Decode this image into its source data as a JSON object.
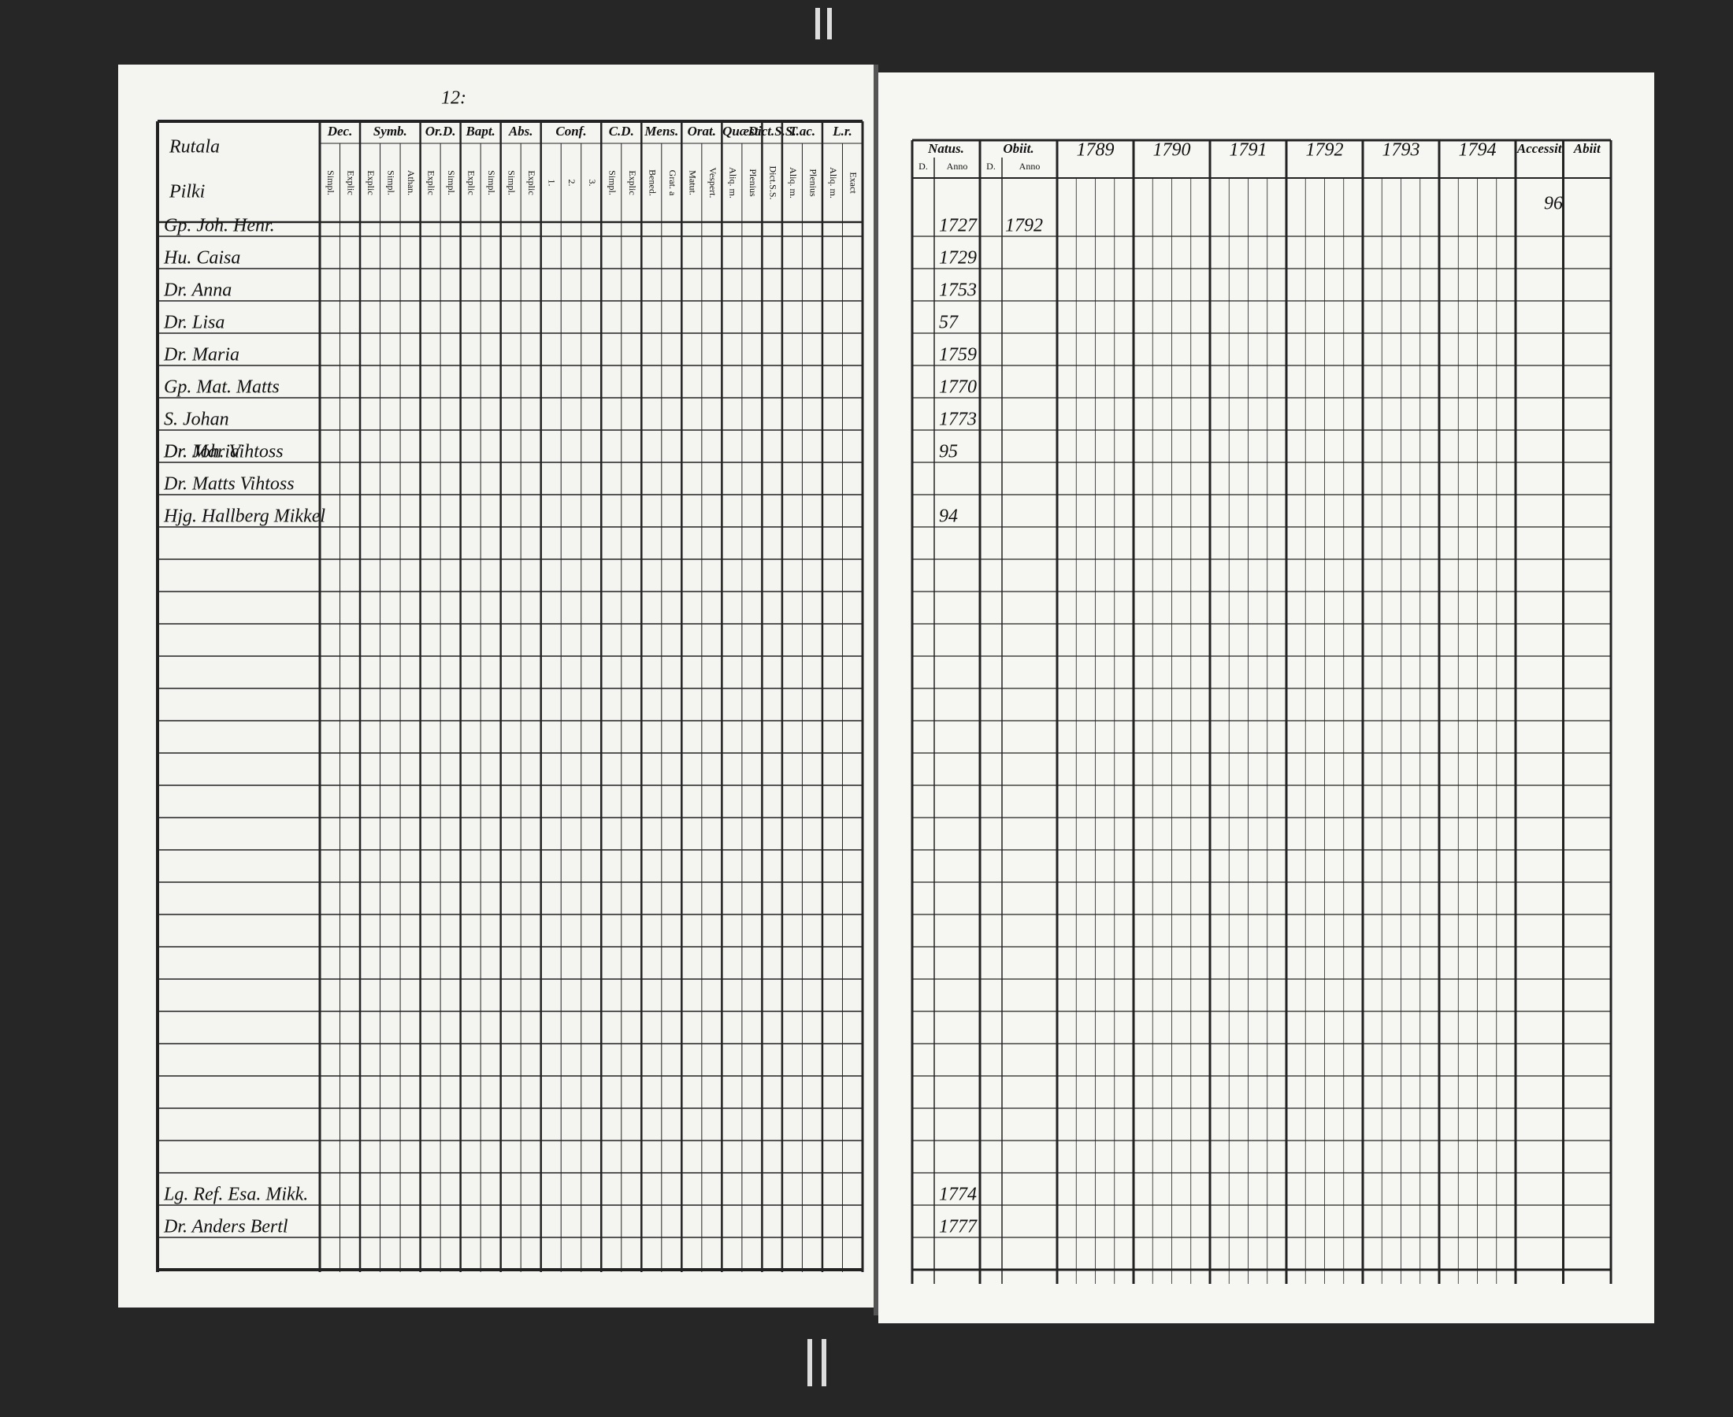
{
  "left_page": {
    "page_number": "12:",
    "household": [
      "Rutala",
      "Pilki"
    ],
    "columns": [
      {
        "group": "Dec.",
        "subs": [
          "Simpl.",
          "Explic"
        ]
      },
      {
        "group": "Symb.",
        "subs": [
          "Explic",
          "Simpl.",
          "Athan."
        ]
      },
      {
        "group": "Or.D.",
        "subs": [
          "Explic",
          "Simpl."
        ]
      },
      {
        "group": "Bapt.",
        "subs": [
          "Explic",
          "Simpl."
        ]
      },
      {
        "group": "Abs.",
        "subs": [
          "Simpl.",
          "Explic"
        ]
      },
      {
        "group": "Conf.",
        "subs": [
          "1.",
          "2.",
          "3."
        ]
      },
      {
        "group": "C.D.",
        "subs": [
          "Simpl.",
          "Explic"
        ]
      },
      {
        "group": "Mens.",
        "subs": [
          "Bened.",
          "Grat. a"
        ]
      },
      {
        "group": "Orat.",
        "subs": [
          "Matut.",
          "Vespert."
        ]
      },
      {
        "group": "Quæst.",
        "subs": [
          "Aliq. m.",
          "Plenius"
        ]
      },
      {
        "group": "Dict.S.S.",
        "subs": [
          "Dict.S.S."
        ]
      },
      {
        "group": "T.ac.",
        "subs": [
          "Aliq. m.",
          "Plenius"
        ]
      },
      {
        "group": "L.r.",
        "subs": [
          "Aliq. m.",
          "Exact"
        ]
      }
    ],
    "members": [
      {
        "name": "Gp. Joh. Henr.",
        "born": "1727",
        "died": "1792"
      },
      {
        "name": "Hu. Caisa",
        "born": "1729"
      },
      {
        "name": "Dr. Anna",
        "born": "1753"
      },
      {
        "name": "Dr. Lisa",
        "born": "57"
      },
      {
        "name": "Dr. Maria",
        "born": "1759"
      },
      {
        "name": "Gp. Mat. Matts",
        "born": "1770"
      },
      {
        "name": "S. Johan",
        "born": "1773"
      },
      {
        "name": "Dr. Maria",
        "born": "95"
      }
    ],
    "later_members": [
      {
        "name": "Dr. Joh. Vihtoss"
      },
      {
        "name": "Dr. Matts Vihtoss"
      },
      {
        "name": "Hjg. Hallberg Mikkel",
        "born": "94"
      }
    ],
    "bottom_members": [
      {
        "name": "Lg. Ref. Esa. Mikk.",
        "born": "1774"
      },
      {
        "name": "Dr. Anders Bertl",
        "born": "1777"
      }
    ]
  },
  "right_page": {
    "page_number": "96",
    "natus": {
      "group": "Natus.",
      "subs": [
        "D.",
        "Anno"
      ]
    },
    "obiit": {
      "group": "Obiit.",
      "subs": [
        "D.",
        "Anno"
      ]
    },
    "years": [
      "1789",
      "1790",
      "1791",
      "1792",
      "1793",
      "1794"
    ],
    "end_columns": [
      "Accessit",
      "Abiit"
    ]
  }
}
